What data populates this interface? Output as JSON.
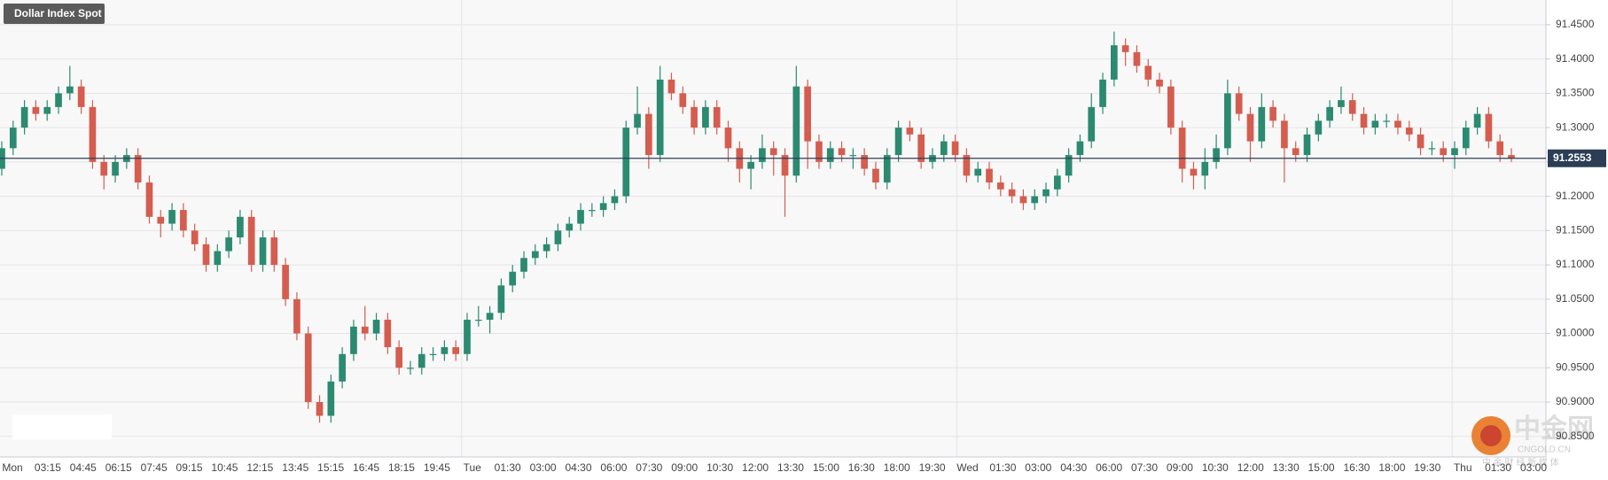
{
  "chart_data": {
    "type": "candlestick",
    "title": "Dollar Index Spot",
    "x_axis_labels": [
      "Mon",
      "03:15",
      "04:45",
      "06:15",
      "07:45",
      "09:15",
      "10:45",
      "12:15",
      "13:45",
      "15:15",
      "16:45",
      "18:15",
      "19:45",
      "Tue",
      "01:30",
      "03:00",
      "04:30",
      "06:00",
      "07:30",
      "09:00",
      "10:30",
      "12:00",
      "13:30",
      "15:00",
      "16:30",
      "18:00",
      "19:30",
      "Wed",
      "01:30",
      "03:00",
      "04:30",
      "06:00",
      "07:30",
      "09:00",
      "10:30",
      "12:00",
      "13:30",
      "15:00",
      "16:30",
      "18:00",
      "19:30",
      "Thu",
      "01:30",
      "03:00"
    ],
    "open": [
      91.24,
      91.27,
      91.3,
      91.33,
      91.32,
      91.33,
      91.35,
      91.36,
      91.33,
      91.25,
      91.23,
      91.25,
      91.26,
      91.22,
      91.17,
      91.16,
      91.18,
      91.15,
      91.13,
      91.1,
      91.12,
      91.14,
      91.17,
      91.1,
      91.14,
      91.1,
      91.05,
      91.0,
      90.9,
      90.88,
      90.93,
      90.97,
      91.01,
      91.0,
      91.02,
      90.98,
      90.95,
      90.95,
      90.97,
      90.97,
      90.98,
      90.97,
      91.02,
      91.02,
      91.03,
      91.07,
      91.09,
      91.11,
      91.12,
      91.13,
      91.15,
      91.16,
      91.18,
      91.18,
      91.19,
      91.2,
      91.3,
      91.32,
      91.26,
      91.37,
      91.35,
      91.33,
      91.3,
      91.33,
      91.3,
      91.27,
      91.24,
      91.25,
      91.27,
      91.26,
      91.23,
      91.36,
      91.28,
      91.25,
      91.27,
      91.26,
      91.26,
      91.24,
      91.22,
      91.26,
      91.3,
      91.29,
      91.25,
      91.26,
      91.28,
      91.26,
      91.23,
      91.24,
      91.22,
      91.21,
      91.2,
      91.19,
      91.2,
      91.21,
      91.23,
      91.26,
      91.28,
      91.33,
      91.37,
      91.42,
      91.41,
      91.39,
      91.37,
      91.36,
      91.3,
      91.24,
      91.23,
      91.25,
      91.27,
      91.35,
      91.32,
      91.28,
      91.33,
      91.31,
      91.27,
      91.26,
      91.29,
      91.31,
      91.33,
      91.34,
      91.32,
      91.3,
      91.31,
      91.31,
      91.3,
      91.29,
      91.27,
      91.27,
      91.26,
      91.27,
      91.3,
      91.32,
      91.28,
      91.26
    ],
    "high": [
      91.28,
      91.31,
      91.34,
      91.34,
      91.34,
      91.36,
      91.39,
      91.37,
      91.34,
      91.26,
      91.26,
      91.27,
      91.27,
      91.23,
      91.18,
      91.19,
      91.19,
      91.16,
      91.14,
      91.13,
      91.15,
      91.18,
      91.18,
      91.15,
      91.15,
      91.11,
      91.06,
      91.01,
      90.91,
      90.94,
      90.98,
      91.02,
      91.04,
      91.03,
      91.03,
      90.99,
      90.96,
      90.98,
      90.98,
      90.99,
      90.99,
      91.03,
      91.04,
      91.04,
      91.08,
      91.1,
      91.12,
      91.13,
      91.14,
      91.16,
      91.17,
      91.19,
      91.19,
      91.2,
      91.21,
      91.31,
      91.36,
      91.33,
      91.39,
      91.38,
      91.36,
      91.34,
      91.34,
      91.34,
      91.31,
      91.28,
      91.26,
      91.29,
      91.28,
      91.27,
      91.39,
      91.37,
      91.29,
      91.28,
      91.28,
      91.27,
      91.27,
      91.25,
      91.27,
      91.31,
      91.31,
      91.3,
      91.27,
      91.29,
      91.29,
      91.27,
      91.25,
      91.25,
      91.23,
      91.22,
      91.21,
      91.21,
      91.22,
      91.24,
      91.27,
      91.29,
      91.35,
      91.38,
      91.44,
      91.43,
      91.42,
      91.4,
      91.38,
      91.37,
      91.31,
      91.25,
      91.27,
      91.29,
      91.37,
      91.36,
      91.33,
      91.35,
      91.34,
      91.32,
      91.28,
      91.3,
      91.32,
      91.34,
      91.36,
      91.35,
      91.33,
      91.32,
      91.32,
      91.32,
      91.31,
      91.3,
      91.28,
      91.28,
      91.28,
      91.31,
      91.33,
      91.33,
      91.29,
      91.27
    ],
    "low": [
      91.23,
      91.26,
      91.29,
      91.31,
      91.31,
      91.32,
      91.34,
      91.32,
      91.24,
      91.21,
      91.22,
      91.24,
      91.21,
      91.16,
      91.14,
      91.15,
      91.14,
      91.12,
      91.09,
      91.09,
      91.11,
      91.13,
      91.09,
      91.09,
      91.09,
      91.04,
      90.99,
      90.89,
      90.87,
      90.87,
      90.92,
      90.96,
      90.99,
      90.99,
      90.97,
      90.94,
      90.94,
      90.94,
      90.96,
      90.96,
      90.96,
      90.96,
      91.01,
      91.0,
      91.02,
      91.06,
      91.08,
      91.1,
      91.11,
      91.12,
      91.14,
      91.15,
      91.17,
      91.17,
      91.18,
      91.19,
      91.29,
      91.24,
      91.25,
      91.34,
      91.32,
      91.29,
      91.29,
      91.29,
      91.25,
      91.22,
      91.21,
      91.24,
      91.23,
      91.17,
      91.22,
      91.24,
      91.24,
      91.24,
      91.25,
      91.24,
      91.23,
      91.21,
      91.21,
      91.25,
      91.28,
      91.24,
      91.24,
      91.25,
      91.25,
      91.22,
      91.22,
      91.21,
      91.2,
      91.19,
      91.18,
      91.18,
      91.19,
      91.2,
      91.22,
      91.25,
      91.27,
      91.32,
      91.36,
      91.39,
      91.38,
      91.36,
      91.35,
      91.29,
      91.22,
      91.21,
      91.21,
      91.24,
      91.26,
      91.31,
      91.25,
      91.27,
      91.3,
      91.22,
      91.25,
      91.25,
      91.28,
      91.3,
      91.32,
      91.31,
      91.29,
      91.29,
      91.3,
      91.29,
      91.28,
      91.26,
      91.26,
      91.25,
      91.24,
      91.26,
      91.29,
      91.27,
      91.25,
      91.25
    ],
    "close": [
      91.27,
      91.3,
      91.33,
      91.32,
      91.33,
      91.35,
      91.36,
      91.33,
      91.25,
      91.23,
      91.25,
      91.26,
      91.22,
      91.17,
      91.16,
      91.18,
      91.15,
      91.13,
      91.1,
      91.12,
      91.14,
      91.17,
      91.1,
      91.14,
      91.1,
      91.05,
      91.0,
      90.9,
      90.88,
      90.93,
      90.97,
      91.01,
      91.0,
      91.02,
      90.98,
      90.95,
      90.95,
      90.97,
      90.97,
      90.98,
      90.97,
      91.02,
      91.02,
      91.03,
      91.07,
      91.09,
      91.11,
      91.12,
      91.13,
      91.15,
      91.16,
      91.18,
      91.18,
      91.19,
      91.2,
      91.3,
      91.32,
      91.26,
      91.37,
      91.35,
      91.33,
      91.3,
      91.33,
      91.3,
      91.27,
      91.24,
      91.25,
      91.27,
      91.26,
      91.23,
      91.36,
      91.28,
      91.25,
      91.27,
      91.26,
      91.26,
      91.24,
      91.22,
      91.26,
      91.3,
      91.29,
      91.25,
      91.26,
      91.28,
      91.26,
      91.23,
      91.24,
      91.22,
      91.21,
      91.2,
      91.19,
      91.2,
      91.21,
      91.23,
      91.26,
      91.28,
      91.33,
      91.37,
      91.42,
      91.41,
      91.39,
      91.37,
      91.36,
      91.3,
      91.24,
      91.23,
      91.25,
      91.27,
      91.35,
      91.32,
      91.28,
      91.33,
      91.31,
      91.27,
      91.26,
      91.29,
      91.31,
      91.33,
      91.34,
      91.32,
      91.3,
      91.31,
      91.31,
      91.3,
      91.29,
      91.27,
      91.27,
      91.26,
      91.27,
      91.3,
      91.32,
      91.28,
      91.26,
      91.255
    ],
    "up_color": "#2b8a70",
    "down_color": "#d45d4f",
    "last_price": 91.2553,
    "ylim": [
      90.82,
      91.486
    ],
    "yticks": [
      {
        "value": 90.85,
        "label": "90.8500"
      },
      {
        "value": 90.9,
        "label": "90.9000"
      },
      {
        "value": 90.95,
        "label": "90.9500"
      },
      {
        "value": 91.0,
        "label": "91.0000"
      },
      {
        "value": 91.05,
        "label": "91.0500"
      },
      {
        "value": 91.1,
        "label": "91.1000"
      },
      {
        "value": 91.15,
        "label": "91.1500"
      },
      {
        "value": 91.2,
        "label": "91.2000"
      },
      {
        "value": 91.25,
        "label": "91.2500"
      },
      {
        "value": 91.3,
        "label": "91.3000"
      },
      {
        "value": 91.35,
        "label": "91.3500"
      },
      {
        "value": 91.4,
        "label": "91.4000"
      },
      {
        "value": 91.45,
        "label": "91.4500"
      }
    ],
    "grid": true
  },
  "watermark": {
    "brand": "中金网",
    "site": "CNGOLD.CN",
    "slogan": "中 金 财 经 新 媒 体"
  }
}
